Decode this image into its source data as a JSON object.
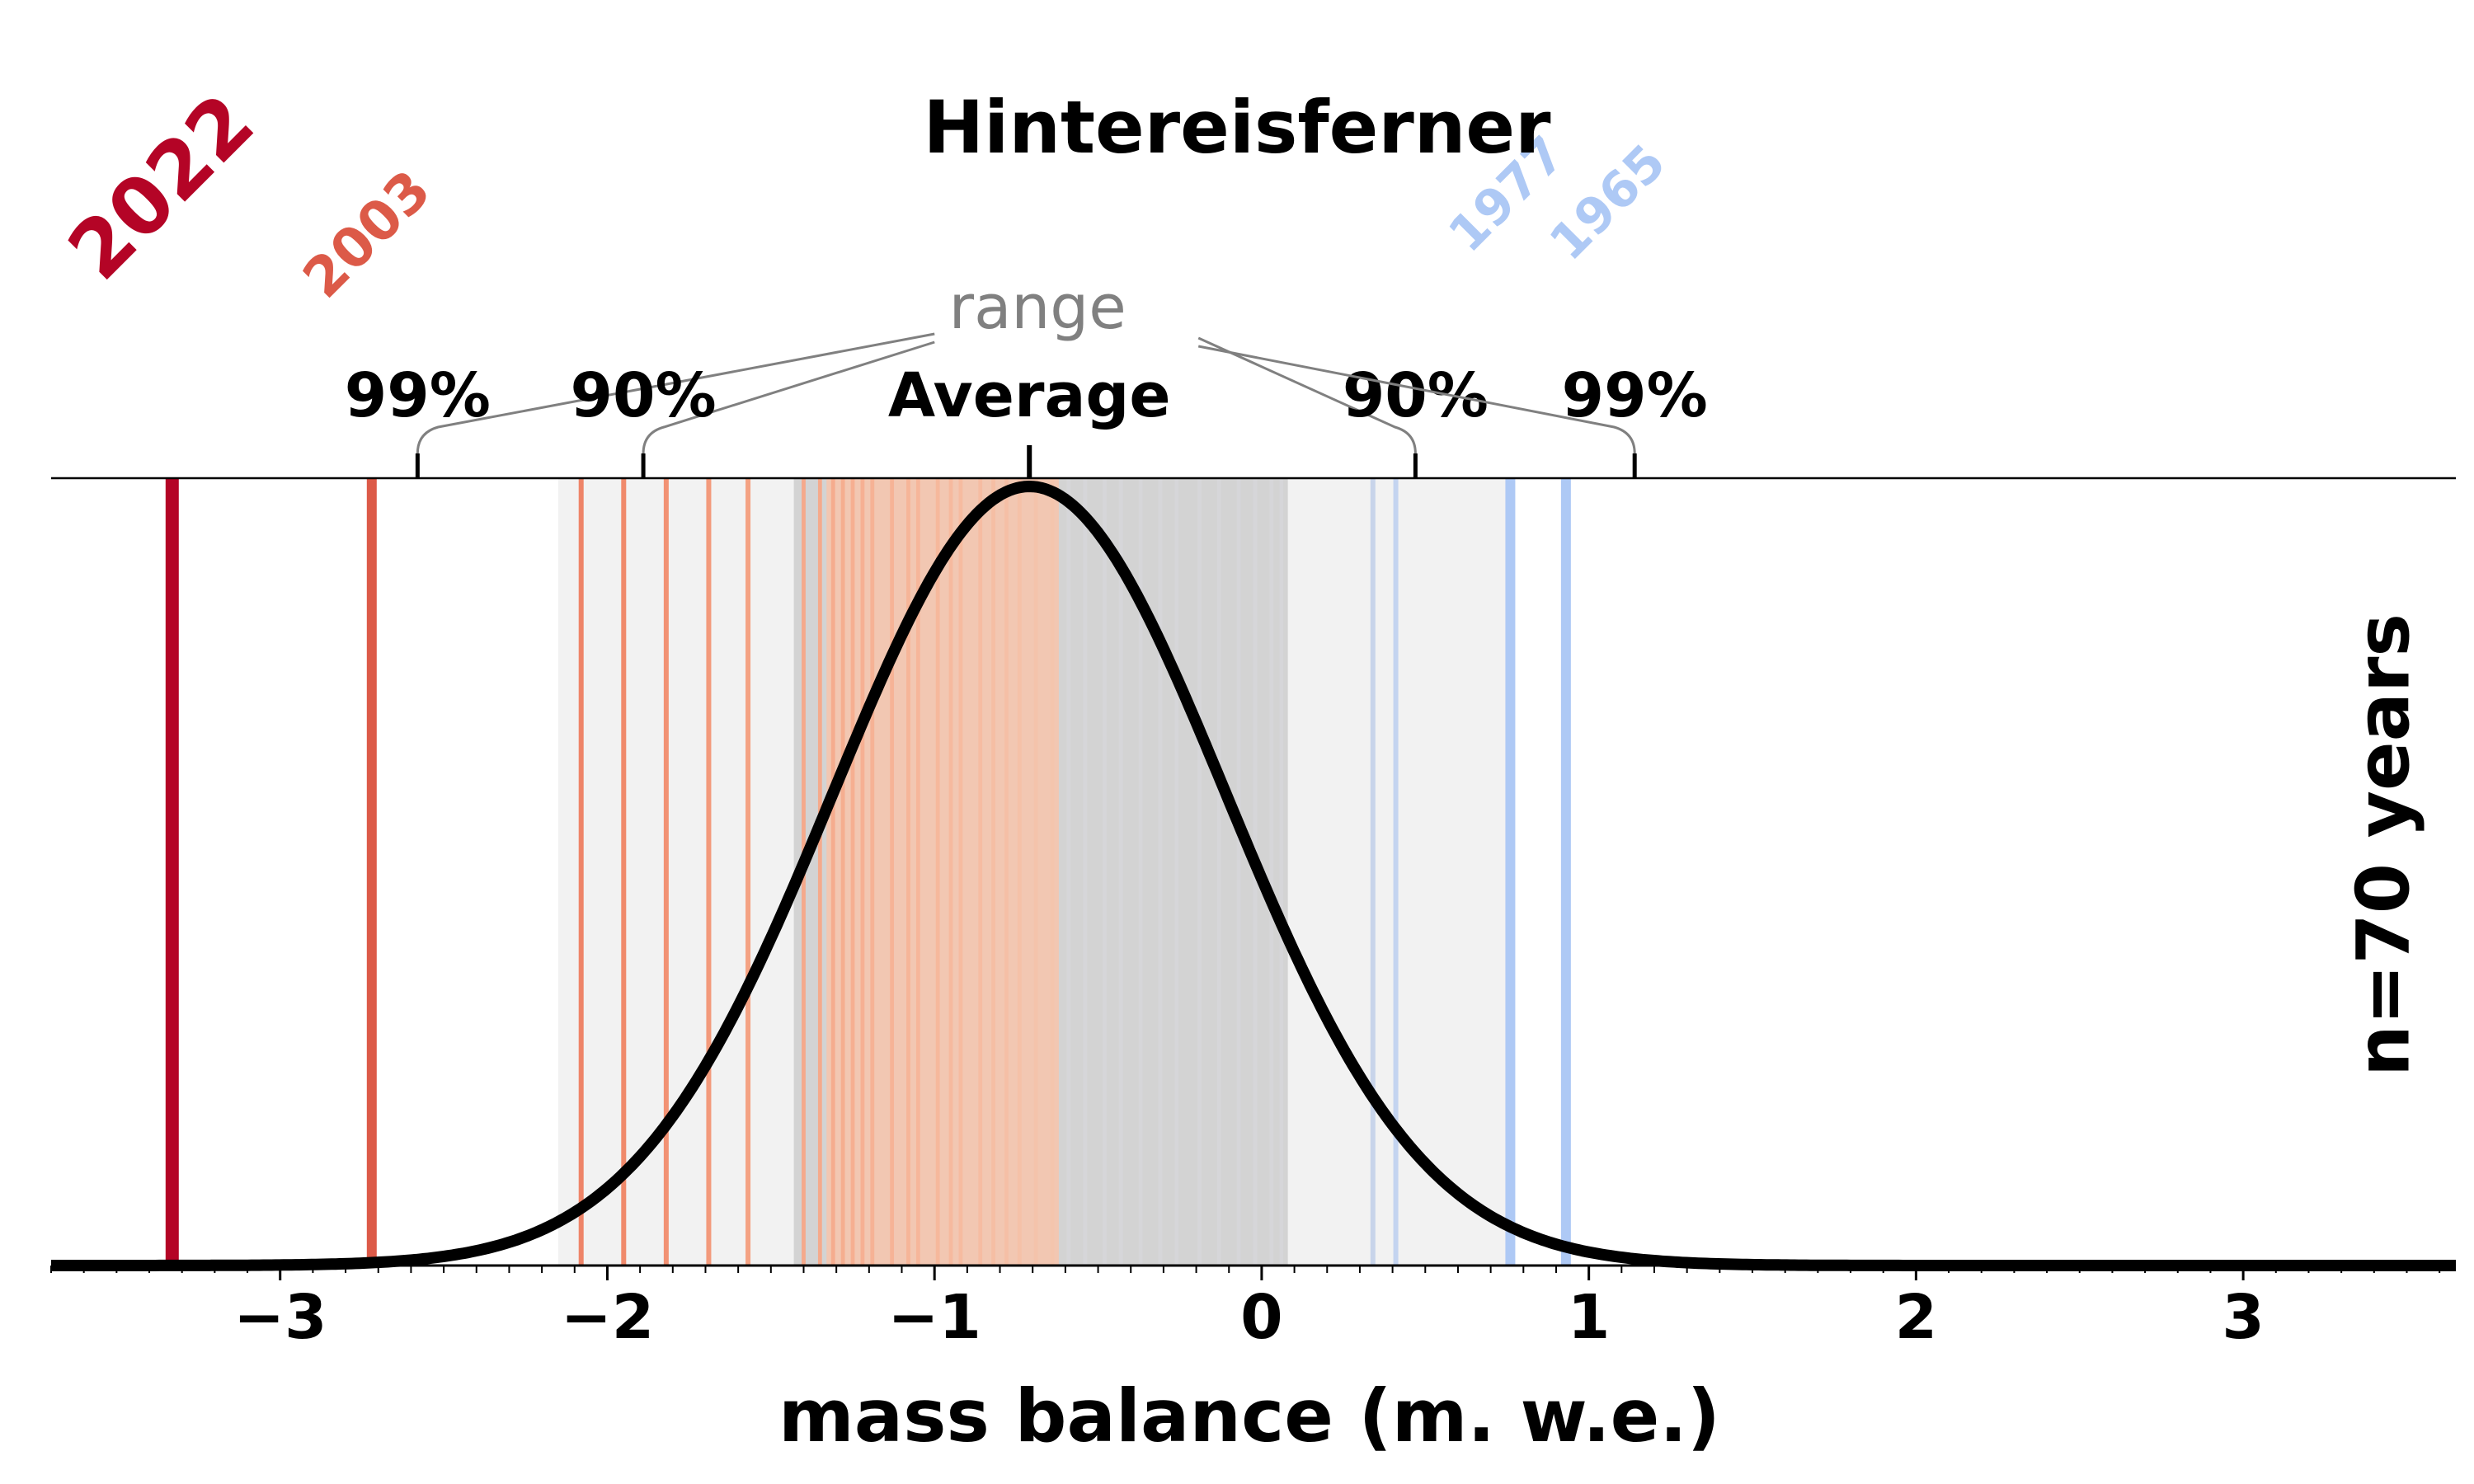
{
  "chart_data": {
    "type": "line",
    "title": "Hintereisferner",
    "xlabel": "mass balance (m. w.e.)",
    "ylabel": "",
    "xlim": [
      -3.7,
      3.65
    ],
    "x_ticks": [
      -3,
      -2,
      -1,
      0,
      1,
      2,
      3
    ],
    "x_tick_labels": [
      "−3",
      "−2",
      "−1",
      "0",
      "1",
      "2",
      "3"
    ],
    "grid": false,
    "n_label": "n=70 years",
    "distribution": {
      "mean": -0.71,
      "std": 0.6
    },
    "average": {
      "label": "Average",
      "value": -0.71
    },
    "range_label": "range",
    "ranges": [
      {
        "label": "99%",
        "low": -2.58,
        "high": 1.14,
        "color": "#f2f2f2"
      },
      {
        "label": "90%",
        "low": -1.89,
        "high": 0.47,
        "color": "#e3e3e3"
      },
      {
        "label": "90%",
        "low": -1.89,
        "high": 0.47,
        "color": "#e3e3e3"
      },
      {
        "label": "99%",
        "low": -2.58,
        "high": 1.14,
        "color": "#f2f2f2"
      }
    ],
    "shaded_bands": [
      {
        "low": -2.15,
        "high": 0.75,
        "color": "#f2f2f2"
      },
      {
        "low": -1.43,
        "high": 0.08,
        "color": "#d3d3d3"
      },
      {
        "low": -1.33,
        "high": -0.62,
        "color": "#f2c7b2"
      }
    ],
    "years": [
      {
        "year": "2022",
        "value": -3.33,
        "color": "#b40426",
        "width": 4,
        "labeled": true
      },
      {
        "year": "2003",
        "value": -2.72,
        "color": "#dc5a48",
        "width": 3,
        "labeled": true
      },
      {
        "year": "",
        "value": -2.08,
        "color": "#ee8468",
        "width": 1.5,
        "labeled": false
      },
      {
        "year": "",
        "value": -1.95,
        "color": "#f08a6c",
        "width": 1.5,
        "labeled": false
      },
      {
        "year": "",
        "value": -1.82,
        "color": "#f29274",
        "width": 1.5,
        "labeled": false
      },
      {
        "year": "",
        "value": -1.69,
        "color": "#f39a7c",
        "width": 1.5,
        "labeled": false
      },
      {
        "year": "",
        "value": -1.57,
        "color": "#f4a283",
        "width": 1.5,
        "labeled": false
      },
      {
        "year": "",
        "value": -1.4,
        "color": "#f5a98b",
        "width": 1.2,
        "labeled": false
      },
      {
        "year": "",
        "value": -1.35,
        "color": "#f5aa8c",
        "width": 1.2,
        "labeled": false
      },
      {
        "year": "",
        "value": -1.31,
        "color": "#f5ac8e",
        "width": 1.2,
        "labeled": false
      },
      {
        "year": "",
        "value": -1.28,
        "color": "#f5ae90",
        "width": 1.2,
        "labeled": false
      },
      {
        "year": "",
        "value": -1.25,
        "color": "#f6af91",
        "width": 1.2,
        "labeled": false
      },
      {
        "year": "",
        "value": -1.22,
        "color": "#f6b093",
        "width": 1.2,
        "labeled": false
      },
      {
        "year": "",
        "value": -1.19,
        "color": "#f6b295",
        "width": 1.2,
        "labeled": false
      },
      {
        "year": "",
        "value": -1.13,
        "color": "#f6b396",
        "width": 1.2,
        "labeled": false
      },
      {
        "year": "",
        "value": -1.08,
        "color": "#f6b598",
        "width": 1.2,
        "labeled": false
      },
      {
        "year": "",
        "value": -1.05,
        "color": "#f6b69a",
        "width": 1.2,
        "labeled": false
      },
      {
        "year": "",
        "value": -0.99,
        "color": "#f6b89c",
        "width": 1.2,
        "labeled": false
      },
      {
        "year": "",
        "value": -0.95,
        "color": "#f6b99e",
        "width": 1.2,
        "labeled": false
      },
      {
        "year": "",
        "value": -0.92,
        "color": "#f6bba0",
        "width": 1.2,
        "labeled": false
      },
      {
        "year": "",
        "value": -0.86,
        "color": "#f6bca2",
        "width": 1.2,
        "labeled": false
      },
      {
        "year": "",
        "value": -0.82,
        "color": "#f5bea4",
        "width": 1.2,
        "labeled": false
      },
      {
        "year": "",
        "value": -0.78,
        "color": "#f5bfa6",
        "width": 1.2,
        "labeled": false
      },
      {
        "year": "",
        "value": -0.74,
        "color": "#f5c1a8",
        "width": 1.2,
        "labeled": false
      },
      {
        "year": "",
        "value": -0.69,
        "color": "#f4c3ab",
        "width": 1.2,
        "labeled": false
      },
      {
        "year": "",
        "value": -0.64,
        "color": "#f4c5ad",
        "width": 1.2,
        "labeled": false
      },
      {
        "year": "",
        "value": -0.59,
        "color": "#d6d6d9",
        "width": 1.2,
        "labeled": false
      },
      {
        "year": "",
        "value": -0.54,
        "color": "#d6d6d9",
        "width": 1.2,
        "labeled": false
      },
      {
        "year": "",
        "value": -0.48,
        "color": "#d6d6d9",
        "width": 1.2,
        "labeled": false
      },
      {
        "year": "",
        "value": -0.43,
        "color": "#d6d6d9",
        "width": 1.2,
        "labeled": false
      },
      {
        "year": "",
        "value": -0.37,
        "color": "#d6d6d9",
        "width": 1.2,
        "labeled": false
      },
      {
        "year": "",
        "value": -0.31,
        "color": "#d6d6d9",
        "width": 1.2,
        "labeled": false
      },
      {
        "year": "",
        "value": -0.26,
        "color": "#d6d6d9",
        "width": 1.2,
        "labeled": false
      },
      {
        "year": "",
        "value": -0.19,
        "color": "#d6d6d9",
        "width": 1.2,
        "labeled": false
      },
      {
        "year": "",
        "value": -0.13,
        "color": "#d6d6d9",
        "width": 1.2,
        "labeled": false
      },
      {
        "year": "",
        "value": -0.07,
        "color": "#d6d6d9",
        "width": 1.2,
        "labeled": false
      },
      {
        "year": "",
        "value": -0.02,
        "color": "#d6d6d9",
        "width": 1.2,
        "labeled": false
      },
      {
        "year": "",
        "value": 0.03,
        "color": "#d6d6d9",
        "width": 1.2,
        "labeled": false
      },
      {
        "year": "",
        "value": 0.06,
        "color": "#d6d6d9",
        "width": 1.2,
        "labeled": false
      },
      {
        "year": "",
        "value": 0.34,
        "color": "#c8d4ea",
        "width": 1.5,
        "labeled": false
      },
      {
        "year": "",
        "value": 0.41,
        "color": "#c4d4f0",
        "width": 1.5,
        "labeled": false
      },
      {
        "year": "1977",
        "value": 0.76,
        "color": "#aec9f5",
        "width": 3,
        "labeled": true
      },
      {
        "year": "1965",
        "value": 0.93,
        "color": "#aec9f5",
        "width": 3,
        "labeled": true
      }
    ]
  }
}
